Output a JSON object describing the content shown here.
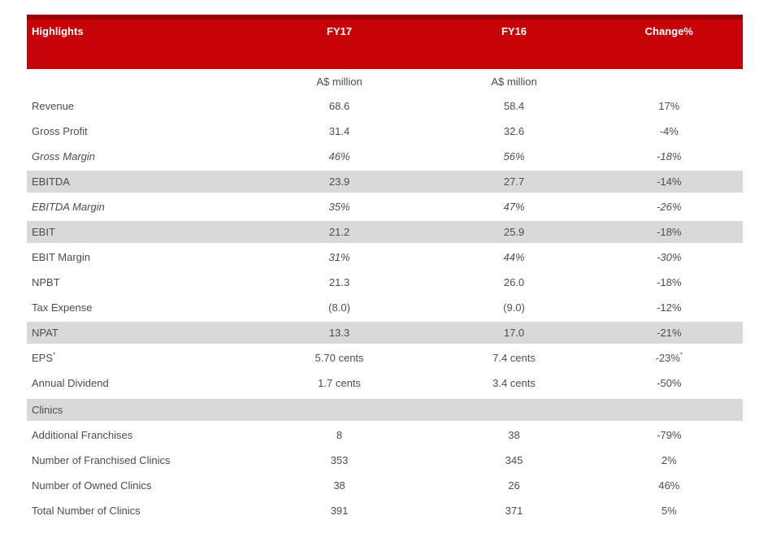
{
  "table": {
    "header": {
      "col_label": "Highlights",
      "col_fy17": "FY17",
      "col_fy16": "FY16",
      "col_change": "Change%"
    },
    "unit_row": {
      "fy17": "A$ million",
      "fy16": "A$ million"
    },
    "rows": [
      {
        "label": "Revenue",
        "fy17": "68.6",
        "fy16": "58.4",
        "change": "17%"
      },
      {
        "label": "Gross Profit",
        "fy17": "31.4",
        "fy16": "32.6",
        "change": "-4%"
      },
      {
        "label": "Gross Margin",
        "fy17": "46%",
        "fy16": "56%",
        "change": "-18%",
        "label_italic": true,
        "values_italic": true
      },
      {
        "label": "EBITDA",
        "fy17": "23.9",
        "fy16": "27.7",
        "change": "-14%",
        "shaded": true
      },
      {
        "label": "EBITDA Margin",
        "fy17": "35%",
        "fy16": "47%",
        "change": "-26%",
        "label_italic": true,
        "values_italic": true
      },
      {
        "label": "EBIT",
        "fy17": "21.2",
        "fy16": "25.9",
        "change": "-18%",
        "shaded": true
      },
      {
        "label": "EBIT Margin",
        "fy17": "31%",
        "fy16": "44%",
        "change": "-30%",
        "values_italic": true
      },
      {
        "label": "NPBT",
        "fy17": "21.3",
        "fy16": "26.0",
        "change": "-18%"
      },
      {
        "label": "Tax Expense",
        "fy17": "(8.0)",
        "fy16": "(9.0)",
        "change": "-12%"
      },
      {
        "label": "NPAT",
        "fy17": "13.3",
        "fy16": "17.0",
        "change": "-21%",
        "shaded": true
      },
      {
        "label": "EPS",
        "label_sup": "*",
        "fy17": "5.70 cents",
        "fy16": "7.4 cents",
        "change": "-23%",
        "change_sup": "*"
      },
      {
        "label": "Annual Dividend",
        "fy17": "1.7 cents",
        "fy16": "3.4 cents",
        "change": "-50%"
      },
      {
        "label": "Clinics",
        "fy17": "",
        "fy16": "",
        "change": "",
        "shaded": true,
        "section": true
      },
      {
        "label": "Additional Franchises",
        "fy17": "8",
        "fy16": "38",
        "change": "-79%"
      },
      {
        "label": "Number of Franchised Clinics",
        "fy17": "353",
        "fy16": "345",
        "change": "2%"
      },
      {
        "label": "Number of Owned Clinics",
        "fy17": "38",
        "fy16": "26",
        "change": "46%"
      },
      {
        "label": "Total Number of Clinics",
        "fy17": "391",
        "fy16": "371",
        "change": "5%"
      }
    ],
    "colors": {
      "header_bg": "#c60408",
      "header_top_edge": "#9c0006",
      "header_text": "#ffffff",
      "shaded_row_bg": "#d9d9d9",
      "body_text": "#4c4c4e"
    }
  }
}
